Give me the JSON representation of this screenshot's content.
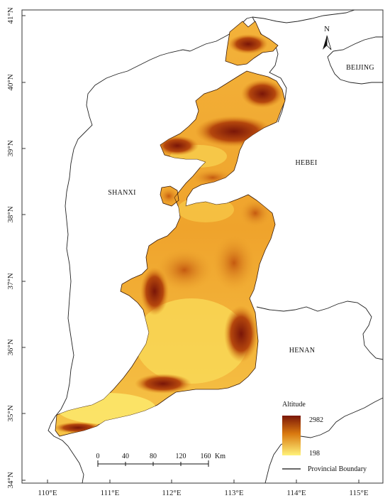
{
  "map": {
    "lat_labels": [
      "41°N",
      "40°N",
      "39°N",
      "38°N",
      "37°N",
      "36°N",
      "35°N",
      "34°N"
    ],
    "lon_labels": [
      "110°E",
      "111°E",
      "112°E",
      "113°E",
      "114°E",
      "115°E"
    ],
    "provinces": {
      "shanxi": "SHANXI",
      "hebei": "HEBEI",
      "henan": "HENAN",
      "beijing": "BEIJING"
    },
    "north_arrow": "N",
    "legend": {
      "title": "Altitude",
      "max": "2982",
      "min": "198",
      "boundary_label": "Provincial Boundary",
      "color_high": "#7a1608",
      "color_mid": "#d9780f",
      "color_low": "#fff27a"
    },
    "scale_bar": {
      "ticks": [
        "0",
        "40",
        "80",
        "120",
        "160"
      ],
      "unit": "Km"
    }
  }
}
